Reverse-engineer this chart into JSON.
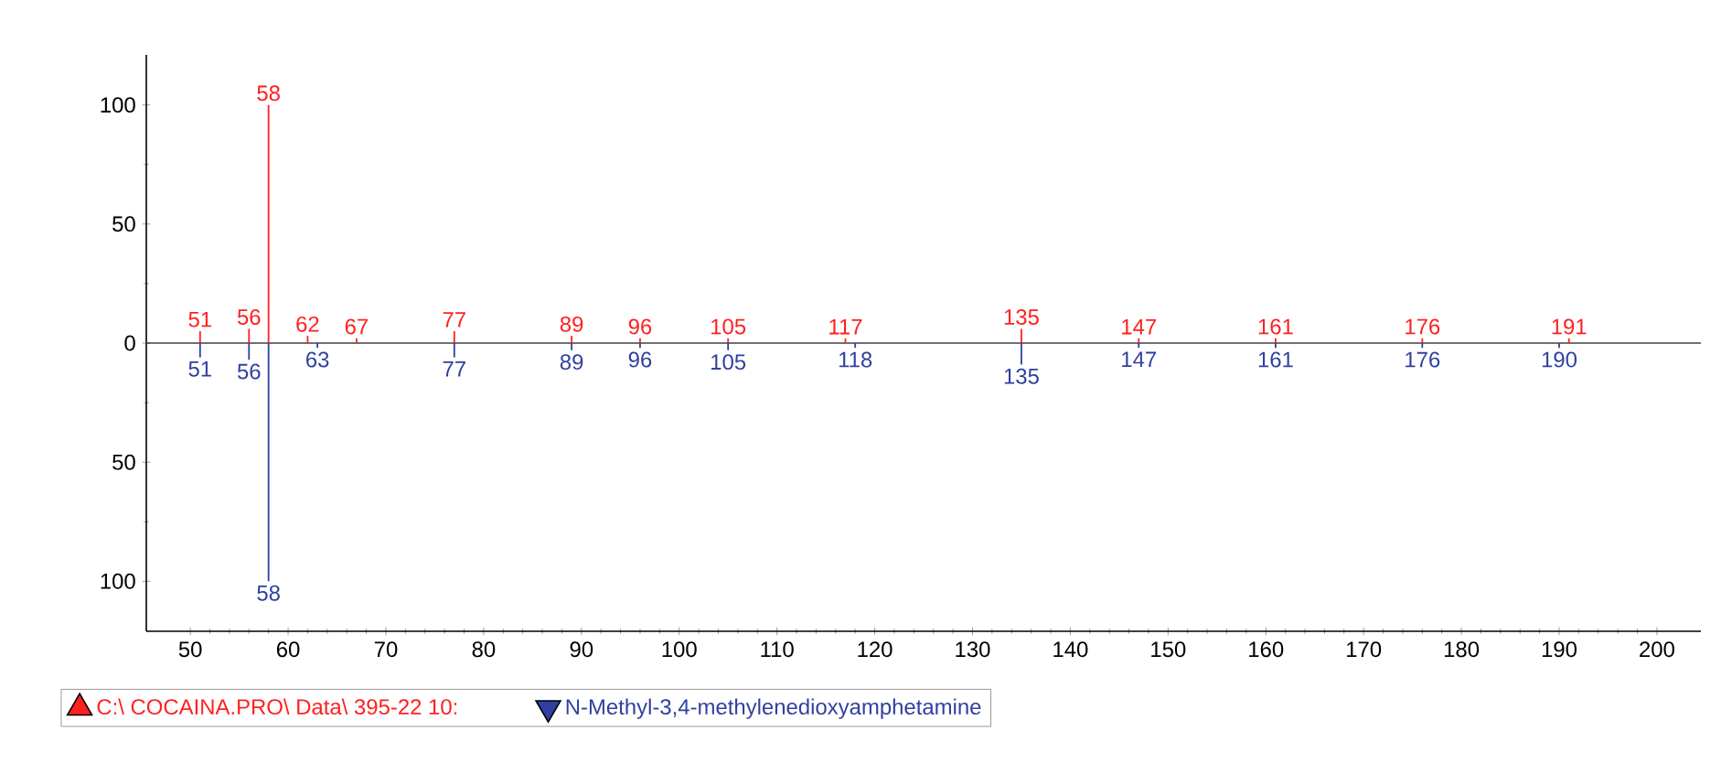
{
  "chart_data": {
    "type": "bar",
    "xlim": [
      45.5,
      204.5
    ],
    "ylim": [
      -121,
      121
    ],
    "xticks": [
      50,
      60,
      70,
      80,
      90,
      100,
      110,
      120,
      130,
      140,
      150,
      160,
      170,
      180,
      190,
      200
    ],
    "yticks": [
      {
        "value": -100,
        "label": "100"
      },
      {
        "value": -50,
        "label": "50"
      },
      0,
      50,
      100
    ],
    "grid": false,
    "legend": "bottom",
    "series": [
      {
        "name": "C:\\ COCAINA.PRO\\ Data\\ 395-22 10:",
        "color": "#ff2020",
        "x": [
          51,
          56,
          58,
          62,
          67,
          77,
          89,
          96,
          105,
          117,
          135,
          147,
          161,
          176,
          191
        ],
        "values": [
          5,
          6,
          100,
          3,
          2,
          5,
          3,
          2,
          2,
          2,
          6,
          2,
          2,
          2,
          2
        ]
      },
      {
        "name": "N-Methyl-3,4-methylenedioxyamphetamine",
        "color": "#3040a0",
        "x": [
          51,
          56,
          58,
          63,
          77,
          89,
          96,
          105,
          118,
          135,
          147,
          161,
          176,
          190
        ],
        "values": [
          -6,
          -7,
          -100,
          -2,
          -6,
          -3,
          -2,
          -3,
          -2,
          -9,
          -2,
          -2,
          -2,
          -2
        ]
      }
    ],
    "ref_lines": [
      {
        "axis": "y",
        "value": 0,
        "color": "#404040"
      }
    ],
    "annotations": [
      {
        "text": "51",
        "x": 51,
        "y": 5
      },
      {
        "text": "56",
        "x": 56,
        "y": 6
      },
      {
        "text": "58",
        "x": 58,
        "y": 100
      },
      {
        "text": "62",
        "x": 62,
        "y": 3
      },
      {
        "text": "67",
        "x": 67,
        "y": 2
      },
      {
        "text": "77",
        "x": 77,
        "y": 5
      },
      {
        "text": "89",
        "x": 89,
        "y": 3
      },
      {
        "text": "96",
        "x": 96,
        "y": 2
      },
      {
        "text": "105",
        "x": 105,
        "y": 2
      },
      {
        "text": "117",
        "x": 117,
        "y": 2
      },
      {
        "text": "135",
        "x": 135,
        "y": 6
      },
      {
        "text": "147",
        "x": 147,
        "y": 2
      },
      {
        "text": "161",
        "x": 161,
        "y": 2
      },
      {
        "text": "176",
        "x": 176,
        "y": 2
      },
      {
        "text": "191",
        "x": 191,
        "y": 2
      },
      {
        "text": "51",
        "x": 51,
        "y": -6
      },
      {
        "text": "56",
        "x": 56,
        "y": -7
      },
      {
        "text": "58",
        "x": 58,
        "y": -100
      },
      {
        "text": "63",
        "x": 63,
        "y": -2
      },
      {
        "text": "77",
        "x": 77,
        "y": -6
      },
      {
        "text": "89",
        "x": 89,
        "y": -3
      },
      {
        "text": "96",
        "x": 96,
        "y": -2
      },
      {
        "text": "105",
        "x": 105,
        "y": -3
      },
      {
        "text": "118",
        "x": 118,
        "y": -2
      },
      {
        "text": "135",
        "x": 135,
        "y": -9
      },
      {
        "text": "147",
        "x": 147,
        "y": -2
      },
      {
        "text": "161",
        "x": 161,
        "y": -2
      },
      {
        "text": "176",
        "x": 176,
        "y": -2
      },
      {
        "text": "190",
        "x": 190,
        "y": -2
      }
    ]
  }
}
